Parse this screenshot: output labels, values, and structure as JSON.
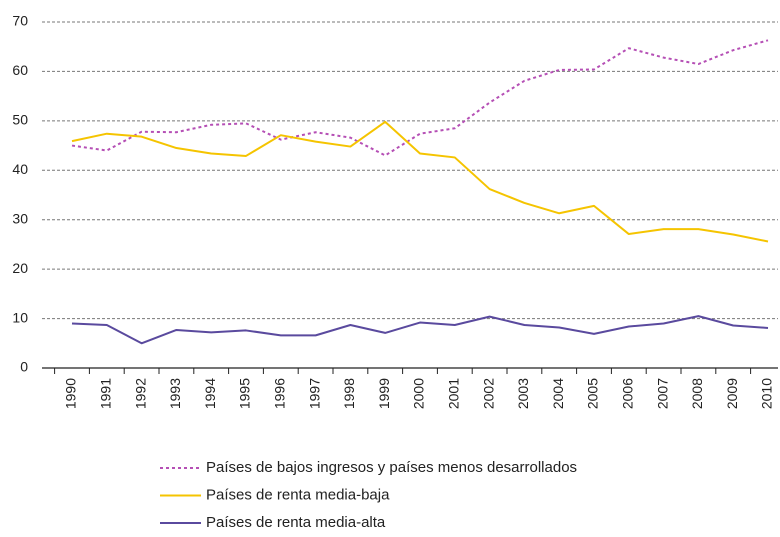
{
  "chart_data": {
    "type": "line",
    "categories": [
      "1990",
      "1991",
      "1992",
      "1993",
      "1994",
      "1995",
      "1996",
      "1997",
      "1998",
      "1999",
      "2000",
      "2001",
      "2002",
      "2003",
      "2004",
      "2005",
      "2006",
      "2007",
      "2008",
      "2009",
      "2010"
    ],
    "series": [
      {
        "name": "Países de bajos ingresos y países menos desarrollados",
        "color": "#b54fb5",
        "dash": "dotted",
        "values": [
          45,
          44,
          47.8,
          47.7,
          49.2,
          49.5,
          46.2,
          47.7,
          46.6,
          43,
          47.4,
          48.5,
          53.7,
          58.1,
          60.3,
          60.4,
          64.7,
          62.8,
          61.5,
          64.3,
          66.3
        ]
      },
      {
        "name": "Países de renta media-baja",
        "color": "#f5c400",
        "dash": "solid",
        "values": [
          45.9,
          47.4,
          46.8,
          44.5,
          43.4,
          42.9,
          47.1,
          45.8,
          44.8,
          49.8,
          43.4,
          42.6,
          36.2,
          33.4,
          31.3,
          32.8,
          27.1,
          28.1,
          28.1,
          27,
          25.6
        ]
      },
      {
        "name": "Países de renta media-alta",
        "color": "#5a4a9e",
        "dash": "solid",
        "values": [
          9,
          8.7,
          5,
          7.7,
          7.2,
          7.6,
          6.6,
          6.6,
          8.7,
          7.1,
          9.2,
          8.7,
          10.4,
          8.7,
          8.2,
          6.9,
          8.4,
          9,
          10.5,
          8.6,
          8.1
        ]
      }
    ],
    "ylim": [
      0,
      70
    ],
    "yticks": [
      0,
      10,
      20,
      30,
      40,
      50,
      60,
      70
    ],
    "grid": true,
    "legend": "bottom"
  }
}
